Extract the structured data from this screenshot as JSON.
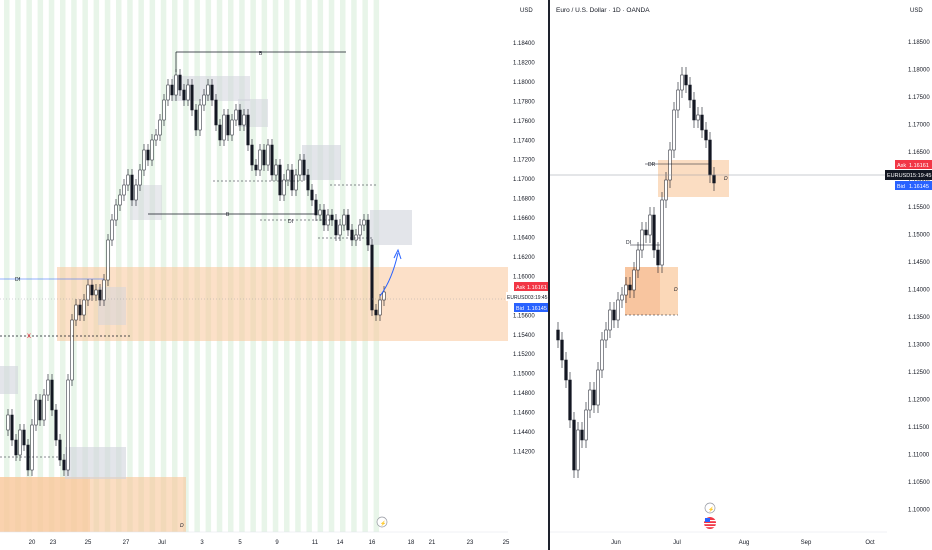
{
  "left_chart": {
    "currency": "USD",
    "symbol_label": "EURUSD",
    "countdown": "03:19:45",
    "ask": {
      "label": "Ask",
      "price": "1.16161"
    },
    "bid": {
      "label": "Bid",
      "price": "1.16145"
    },
    "y_ticks": [
      "1.18400",
      "1.18200",
      "1.18000",
      "1.17800",
      "1.17600",
      "1.17400",
      "1.17200",
      "1.17000",
      "1.16800",
      "1.16600",
      "1.16400",
      "1.16200",
      "1.16000",
      "1.15800",
      "1.15600",
      "1.15400",
      "1.15200",
      "1.15000",
      "1.14800",
      "1.14600",
      "1.14400",
      "1.14200"
    ],
    "x_ticks": [
      "20",
      "23",
      "25",
      "27",
      "Jul",
      "3",
      "5",
      "9",
      "11",
      "14",
      "16",
      "18",
      "21",
      "23",
      "25"
    ],
    "annotations": {
      "bos_high": "B",
      "bos_mid": "B",
      "bos_low": "B",
      "choch": "ch",
      "d_label": "D",
      "df_label": "Df",
      "x_mark": "x",
      "di_label": "DI"
    }
  },
  "right_chart": {
    "title": "Euro / U.S. Dollar · 1D · OANDA",
    "currency": "USD",
    "symbol_label": "EURUSD",
    "countdown": "15:19:45",
    "ask": {
      "label": "Ask",
      "price": "1.16161"
    },
    "bid": {
      "label": "Bid",
      "price": "1.16145"
    },
    "y_ticks": [
      "1.18500",
      "1.18000",
      "1.17500",
      "1.17000",
      "1.16500",
      "1.16000",
      "1.15500",
      "1.15000",
      "1.14500",
      "1.14000",
      "1.13500",
      "1.13000",
      "1.12500",
      "1.12000",
      "1.11500",
      "1.11000",
      "1.10500",
      "1.10000"
    ],
    "x_ticks": [
      "Jun",
      "Jul",
      "Aug",
      "Sep",
      "Oct"
    ],
    "annotations": {
      "d_label_top": "D",
      "d_label_low": "D",
      "df_label": "DR",
      "di_label": "DI"
    }
  },
  "colors": {
    "up": "#131722",
    "down": "#131722",
    "zone": "#f9c79a",
    "gray_box": "#d1d4dc",
    "arrow": "#2962ff",
    "ask": "#f23645",
    "bid": "#2962ff",
    "price_bg": "#131722",
    "session_stripe": "#e8f5e9"
  }
}
